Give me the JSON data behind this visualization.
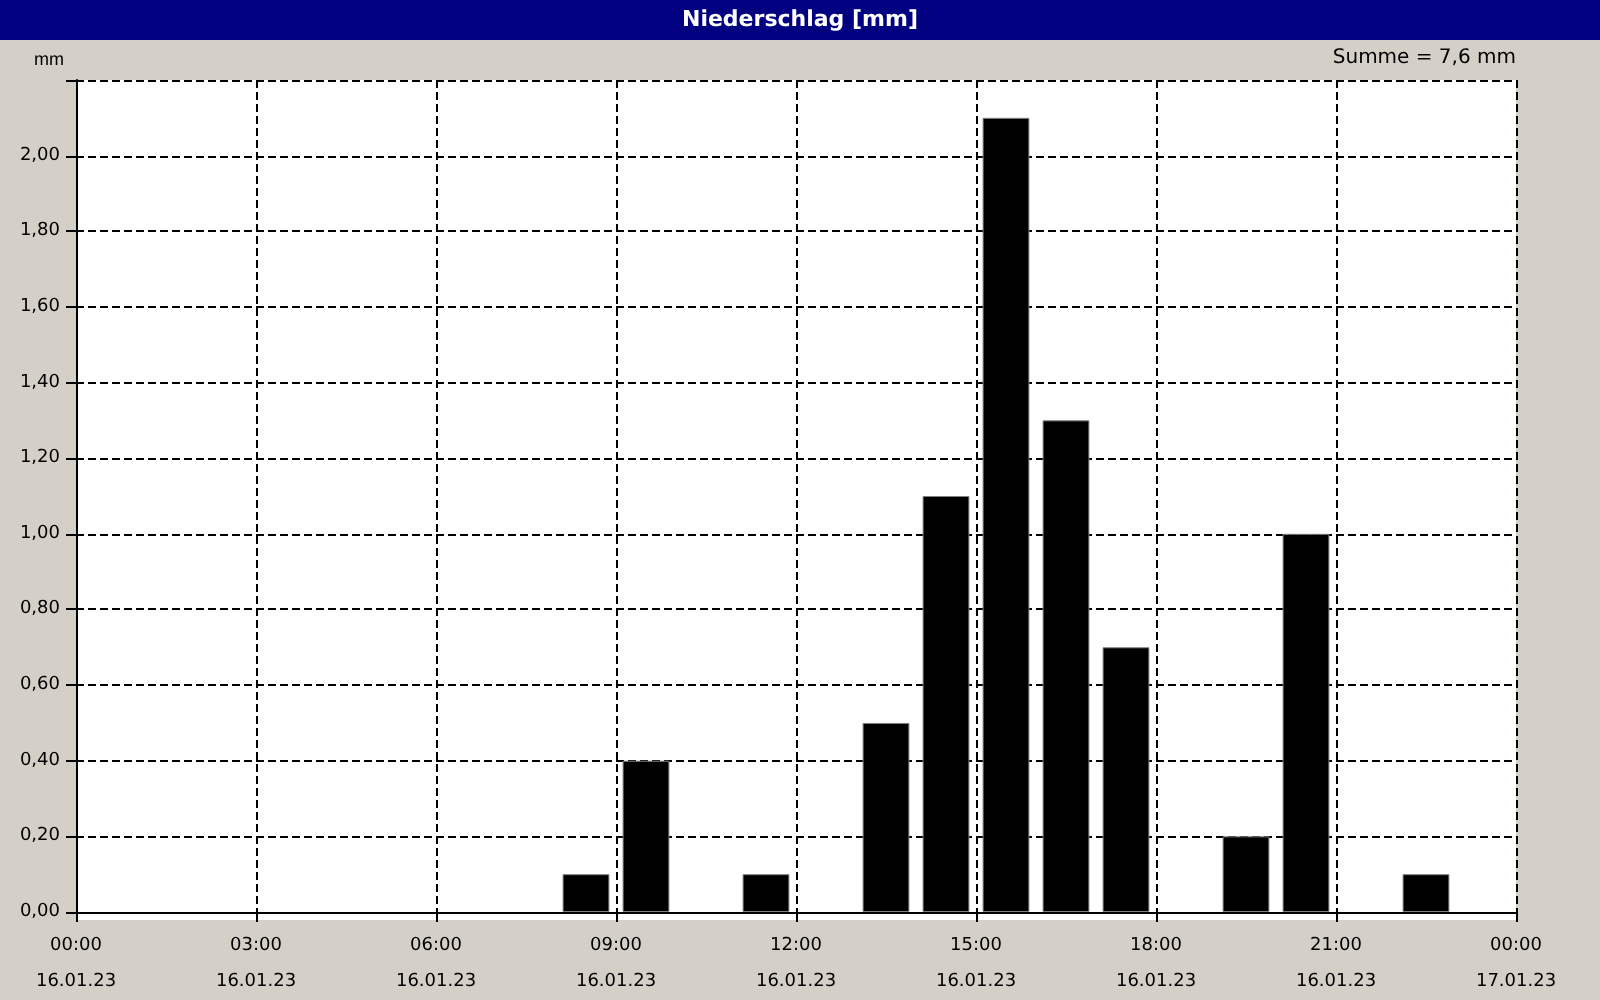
{
  "chart_data": {
    "type": "bar",
    "title": "Niederschlag [mm]",
    "ylabel": "mm",
    "annotations": [
      "Summe = 7,6 mm"
    ],
    "x": [
      "--01-16T08:30",
      "--01-16T09:30",
      "--01-16T11:30",
      "--01-16T13:30",
      "--01-16T14:30",
      "--01-16T15:30",
      "--01-16T16:30",
      "--01-16T17:30",
      "--01-16T19:30",
      "--01-16T20:30",
      "--01-16T22:30"
    ],
    "values": [
      0.1,
      0.4,
      0.1,
      0.5,
      1.1,
      2.1,
      1.3,
      0.7,
      0.2,
      1.0,
      0.1
    ],
    "color": "#000000",
    "xlim": [
      "--01-16T00:00",
      "--01-17T00:00"
    ],
    "xticks": [
      {
        "value": "--01-16T00:00",
        "label": "00:00\n16.01.23"
      },
      {
        "value": "--01-16T03:00",
        "label": "03:00\n16.01.23"
      },
      {
        "value": "--01-16T06:00",
        "label": "06:00\n16.01.23"
      },
      {
        "value": "--01-16T09:00",
        "label": "09:00\n16.01.23"
      },
      {
        "value": "--01-16T12:00",
        "label": "12:00\n16.01.23"
      },
      {
        "value": "--01-16T15:00",
        "label": "15:00\n16.01.23"
      },
      {
        "value": "--01-16T18:00",
        "label": "18:00\n16.01.23"
      },
      {
        "value": "--01-16T21:00",
        "label": "21:00\n16.01.23"
      },
      {
        "value": "--01-17T00:00",
        "label": "00:00\n17.01.23"
      }
    ],
    "ylim": [
      0,
      2.2
    ],
    "yticks": [
      {
        "value": 0,
        "label": "0,00"
      },
      {
        "value": 0.2,
        "label": "0,20"
      },
      {
        "value": 0.4,
        "label": "0,40"
      },
      {
        "value": 0.6,
        "label": "0,60"
      },
      {
        "value": 0.8,
        "label": "0,80"
      },
      {
        "value": 1,
        "label": "1,00"
      },
      {
        "value": 1.2,
        "label": "1,20"
      },
      {
        "value": 1.4,
        "label": "1,40"
      },
      {
        "value": 1.6,
        "label": "1,60"
      },
      {
        "value": 1.8,
        "label": "1,80"
      },
      {
        "value": 2,
        "label": "2,00"
      },
      {
        "value": 2.2,
        "label": null
      }
    ],
    "grid": true,
    "line_style": "dashed"
  }
}
